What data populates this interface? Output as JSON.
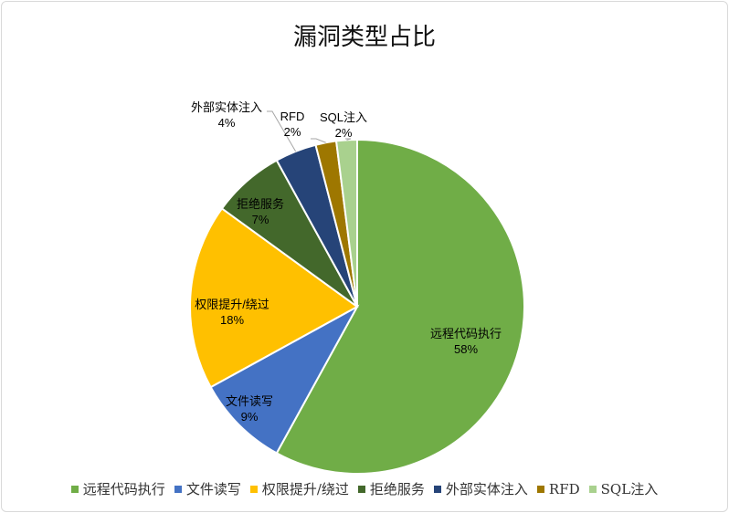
{
  "chart_data": {
    "type": "pie",
    "title": "漏洞类型占比",
    "slices": [
      {
        "name": "远程代码执行",
        "value": 58,
        "label": "58%",
        "color": "#70ad47"
      },
      {
        "name": "文件读写",
        "value": 9,
        "label": "9%",
        "color": "#4472c4"
      },
      {
        "name": "权限提升/绕过",
        "value": 18,
        "label": "18%",
        "color": "#ffc000"
      },
      {
        "name": "拒绝服务",
        "value": 7,
        "label": "7%",
        "color": "#43682b"
      },
      {
        "name": "外部实体注入",
        "value": 4,
        "label": "4%",
        "color": "#264478"
      },
      {
        "name": "RFD",
        "value": 2,
        "label": "2%",
        "color": "#9e7700"
      },
      {
        "name": "SQL注入",
        "value": 2,
        "label": "2%",
        "color": "#a9d18e"
      }
    ],
    "legend": {
      "position": "bottom"
    }
  }
}
